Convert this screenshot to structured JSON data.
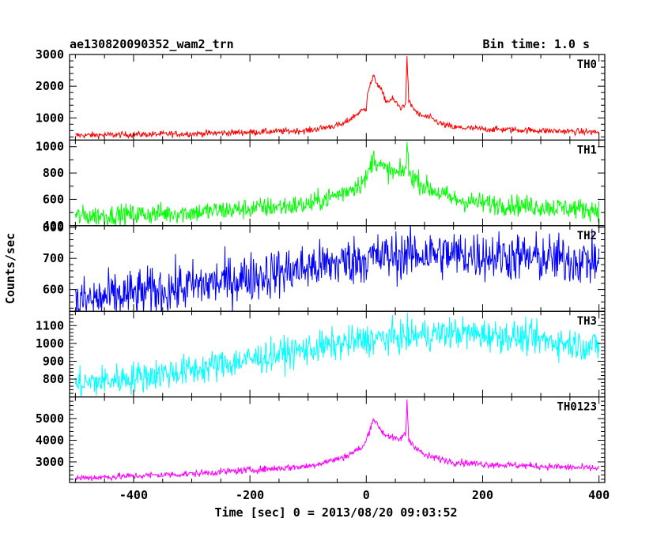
{
  "header": {
    "left_title": "ae130820090352_wam2_trn",
    "right_title": "Bin time: 1.0 s"
  },
  "axes": {
    "xlabel": "Time [sec] 0 = 2013/08/20 09:03:52",
    "ylabel": "Counts/sec"
  },
  "chart_data": {
    "type": "line",
    "x_range": [
      -510,
      410
    ],
    "x_ticks": [
      -400,
      -200,
      0,
      200,
      400
    ],
    "bin_seconds": 1.0,
    "panels": [
      {
        "name": "TH0",
        "color": "#ff0000",
        "ylim": [
          300,
          3000
        ],
        "y_ticks": [
          1000,
          2000,
          3000
        ],
        "noise": 50,
        "profile": [
          [
            -500,
            450
          ],
          [
            -300,
            500
          ],
          [
            -100,
            600
          ],
          [
            -40,
            800
          ],
          [
            -10,
            1200
          ],
          [
            0,
            1300
          ],
          [
            2,
            1800
          ],
          [
            12,
            2300
          ],
          [
            25,
            1900
          ],
          [
            35,
            1500
          ],
          [
            45,
            1600
          ],
          [
            60,
            1300
          ],
          [
            68,
            1500
          ],
          [
            70,
            3000
          ],
          [
            73,
            1500
          ],
          [
            90,
            1100
          ],
          [
            110,
            1000
          ],
          [
            130,
            800
          ],
          [
            150,
            700
          ],
          [
            200,
            650
          ],
          [
            400,
            550
          ]
        ]
      },
      {
        "name": "TH1",
        "color": "#00ff00",
        "ylim": [
          400,
          1050
        ],
        "y_ticks": [
          400,
          600,
          800,
          1000
        ],
        "noise": 40,
        "profile": [
          [
            -500,
            470
          ],
          [
            -300,
            500
          ],
          [
            -100,
            560
          ],
          [
            -40,
            650
          ],
          [
            0,
            750
          ],
          [
            12,
            920
          ],
          [
            30,
            830
          ],
          [
            55,
            790
          ],
          [
            68,
            830
          ],
          [
            70,
            1030
          ],
          [
            73,
            800
          ],
          [
            100,
            700
          ],
          [
            150,
            600
          ],
          [
            200,
            570
          ],
          [
            400,
            520
          ]
        ]
      },
      {
        "name": "TH2",
        "color": "#0000ff",
        "ylim": [
          530,
          805
        ],
        "y_ticks": [
          600,
          700,
          800
        ],
        "noise": 40,
        "profile": [
          [
            -500,
            560
          ],
          [
            -300,
            610
          ],
          [
            -100,
            670
          ],
          [
            0,
            700
          ],
          [
            100,
            715
          ],
          [
            200,
            710
          ],
          [
            400,
            690
          ]
        ]
      },
      {
        "name": "TH3",
        "color": "#00ffff",
        "ylim": [
          700,
          1180
        ],
        "y_ticks": [
          800,
          900,
          1000,
          1100
        ],
        "noise": 45,
        "profile": [
          [
            -500,
            770
          ],
          [
            -300,
            850
          ],
          [
            -150,
            940
          ],
          [
            0,
            1020
          ],
          [
            150,
            1060
          ],
          [
            250,
            1040
          ],
          [
            400,
            980
          ]
        ]
      },
      {
        "name": "TH0123",
        "color": "#ff00ff",
        "ylim": [
          2050,
          6000
        ],
        "y_ticks": [
          3000,
          4000,
          5000
        ],
        "noise": 80,
        "profile": [
          [
            -500,
            2250
          ],
          [
            -300,
            2450
          ],
          [
            -100,
            2800
          ],
          [
            -40,
            3200
          ],
          [
            -5,
            3700
          ],
          [
            0,
            4000
          ],
          [
            12,
            5000
          ],
          [
            30,
            4300
          ],
          [
            55,
            4000
          ],
          [
            68,
            4300
          ],
          [
            70,
            5900
          ],
          [
            73,
            4000
          ],
          [
            100,
            3300
          ],
          [
            150,
            3000
          ],
          [
            200,
            2900
          ],
          [
            400,
            2700
          ]
        ]
      }
    ]
  }
}
